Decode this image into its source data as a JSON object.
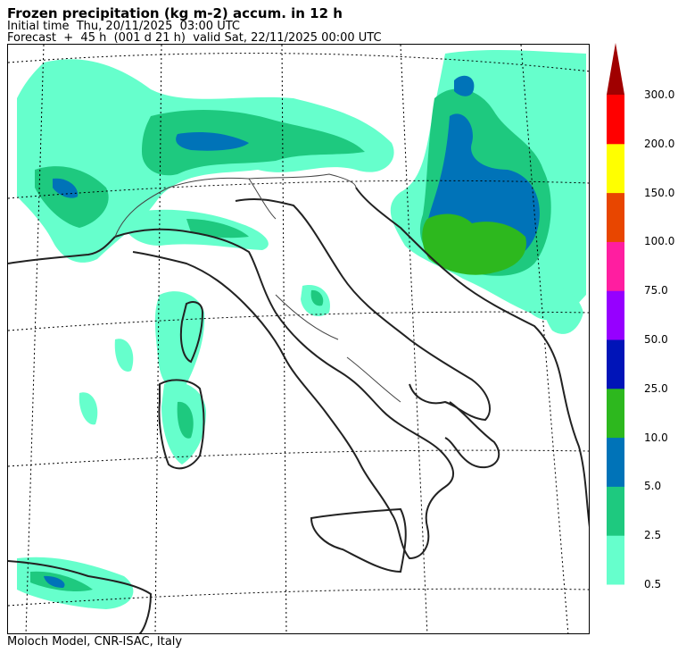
{
  "header": {
    "title": "Frozen precipitation (kg m-2) accum. in 12 h",
    "initial_time": "Initial time  Thu, 20/11/2025  03:00 UTC",
    "forecast": "Forecast  +  45 h  (001 d 21 h)  valid Sat, 22/11/2025 00:00 UTC"
  },
  "footer": {
    "credit": "Moloch Model, CNR-ISAC, Italy"
  },
  "legend": {
    "levels": [
      "0.5",
      "2.5",
      "5.0",
      "10.0",
      "25.0",
      "50.0",
      "75.0",
      "100.0",
      "150.0",
      "200.0",
      "300.0"
    ],
    "colors": [
      "#66ffcc",
      "#1ec97f",
      "#0073b8",
      "#2db81e",
      "#0014b8",
      "#9600ff",
      "#ff1ea0",
      "#e84600",
      "#ffff00",
      "#ff0000",
      "#a00000"
    ]
  }
}
